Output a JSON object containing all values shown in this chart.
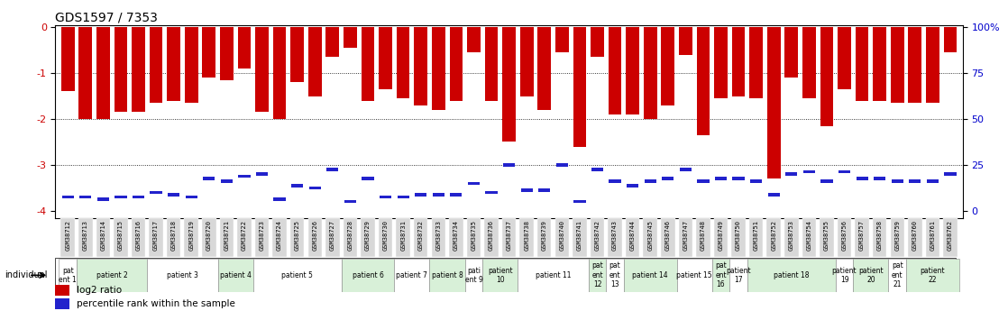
{
  "title": "GDS1597 / 7353",
  "samples": [
    "GSM38712",
    "GSM38713",
    "GSM38714",
    "GSM38715",
    "GSM38716",
    "GSM38717",
    "GSM38718",
    "GSM38719",
    "GSM38720",
    "GSM38721",
    "GSM38722",
    "GSM38723",
    "GSM38724",
    "GSM38725",
    "GSM38726",
    "GSM38727",
    "GSM38728",
    "GSM38729",
    "GSM38730",
    "GSM38731",
    "GSM38732",
    "GSM38733",
    "GSM38734",
    "GSM38735",
    "GSM38736",
    "GSM38737",
    "GSM38738",
    "GSM38739",
    "GSM38740",
    "GSM38741",
    "GSM38742",
    "GSM38743",
    "GSM38744",
    "GSM38745",
    "GSM38746",
    "GSM38747",
    "GSM38748",
    "GSM38749",
    "GSM38750",
    "GSM38751",
    "GSM38752",
    "GSM38753",
    "GSM38754",
    "GSM38755",
    "GSM38756",
    "GSM38757",
    "GSM38758",
    "GSM38759",
    "GSM38760",
    "GSM38761",
    "GSM38762"
  ],
  "log2_values": [
    -1.4,
    -2.0,
    -2.0,
    -1.85,
    -1.85,
    -1.65,
    -1.6,
    -1.65,
    -1.1,
    -1.15,
    -0.9,
    -1.85,
    -2.0,
    -1.2,
    -1.5,
    -0.65,
    -0.45,
    -1.6,
    -1.35,
    -1.55,
    -1.7,
    -1.8,
    -1.6,
    -0.55,
    -1.6,
    -2.5,
    -1.5,
    -1.8,
    -0.55,
    -2.6,
    -0.65,
    -1.9,
    -1.9,
    -2.0,
    -1.7,
    -0.6,
    -2.35,
    -1.55,
    -1.5,
    -1.55,
    -3.3,
    -1.1,
    -1.55,
    -2.15,
    -1.35,
    -1.6,
    -1.6,
    -1.65,
    -1.65,
    -1.65,
    -0.55
  ],
  "percentile_values": [
    -3.7,
    -3.7,
    -3.75,
    -3.7,
    -3.7,
    -3.6,
    -3.65,
    -3.7,
    -3.3,
    -3.35,
    -3.25,
    -3.2,
    -3.75,
    -3.45,
    -3.5,
    -3.1,
    -3.8,
    -3.3,
    -3.7,
    -3.7,
    -3.65,
    -3.65,
    -3.65,
    -3.4,
    -3.6,
    -3.0,
    -3.55,
    -3.55,
    -3.0,
    -3.8,
    -3.1,
    -3.35,
    -3.45,
    -3.35,
    -3.3,
    -3.1,
    -3.35,
    -3.3,
    -3.3,
    -3.35,
    -3.65,
    -3.2,
    -3.15,
    -3.35,
    -3.15,
    -3.3,
    -3.3,
    -3.35,
    -3.35,
    -3.35,
    -3.2
  ],
  "patients": [
    {
      "label": "pat\nent 1",
      "start": 0,
      "end": 1,
      "color": "#ffffff"
    },
    {
      "label": "patient 2",
      "start": 1,
      "end": 5,
      "color": "#d8f0d8"
    },
    {
      "label": "patient 3",
      "start": 5,
      "end": 9,
      "color": "#ffffff"
    },
    {
      "label": "patient 4",
      "start": 9,
      "end": 11,
      "color": "#d8f0d8"
    },
    {
      "label": "patient 5",
      "start": 11,
      "end": 16,
      "color": "#ffffff"
    },
    {
      "label": "patient 6",
      "start": 16,
      "end": 19,
      "color": "#d8f0d8"
    },
    {
      "label": "patient 7",
      "start": 19,
      "end": 21,
      "color": "#ffffff"
    },
    {
      "label": "patient 8",
      "start": 21,
      "end": 23,
      "color": "#d8f0d8"
    },
    {
      "label": "pati\nent 9",
      "start": 23,
      "end": 24,
      "color": "#ffffff"
    },
    {
      "label": "patient\n10",
      "start": 24,
      "end": 26,
      "color": "#d8f0d8"
    },
    {
      "label": "patient 11",
      "start": 26,
      "end": 30,
      "color": "#ffffff"
    },
    {
      "label": "pat\nent\n12",
      "start": 30,
      "end": 31,
      "color": "#d8f0d8"
    },
    {
      "label": "pat\nent\n13",
      "start": 31,
      "end": 32,
      "color": "#ffffff"
    },
    {
      "label": "patient 14",
      "start": 32,
      "end": 35,
      "color": "#d8f0d8"
    },
    {
      "label": "patient 15",
      "start": 35,
      "end": 37,
      "color": "#ffffff"
    },
    {
      "label": "pat\nent\n16",
      "start": 37,
      "end": 38,
      "color": "#d8f0d8"
    },
    {
      "label": "patient\n17",
      "start": 38,
      "end": 39,
      "color": "#ffffff"
    },
    {
      "label": "patient 18",
      "start": 39,
      "end": 44,
      "color": "#d8f0d8"
    },
    {
      "label": "patient\n19",
      "start": 44,
      "end": 45,
      "color": "#ffffff"
    },
    {
      "label": "patient\n20",
      "start": 45,
      "end": 47,
      "color": "#d8f0d8"
    },
    {
      "label": "pat\nent\n21",
      "start": 47,
      "end": 48,
      "color": "#ffffff"
    },
    {
      "label": "patient\n22",
      "start": 48,
      "end": 51,
      "color": "#d8f0d8"
    }
  ],
  "ylim": [
    -4.15,
    0.05
  ],
  "yticks": [
    0,
    -1,
    -2,
    -3,
    -4
  ],
  "bar_color": "#cc0000",
  "percentile_color": "#2222cc",
  "background_color": "#ffffff",
  "title_color": "#000000",
  "label_bg_color": "#d8d8d8",
  "right_ytick_color": "#0000cc",
  "left_ytick_color": "#cc0000"
}
